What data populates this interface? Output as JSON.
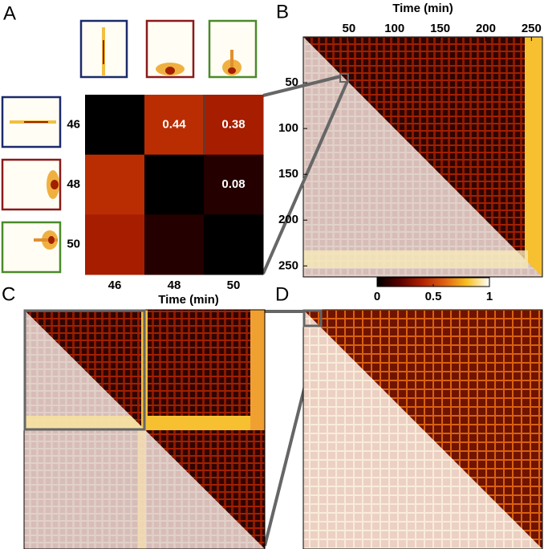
{
  "chart_data": [
    {
      "type": "heatmap",
      "panel": "A",
      "categories": [
        "46",
        "48",
        "50"
      ],
      "values": [
        [
          0,
          0.44,
          0.38
        ],
        [
          0.44,
          0,
          0.08
        ],
        [
          0.38,
          0.08,
          0
        ]
      ],
      "annotate": "upper"
    },
    {
      "type": "texture",
      "panel": "B",
      "xlabel": "Time (min)",
      "xlim": [
        0,
        262
      ],
      "ylim": [
        0,
        262
      ],
      "xticks": [
        50,
        100,
        150,
        200,
        250
      ],
      "yticks": [
        50,
        100,
        150,
        200,
        250
      ]
    },
    {
      "type": "colorbar",
      "lim": [
        0,
        1
      ],
      "ticks": [
        0,
        0.5,
        1
      ],
      "colors": [
        "#000000",
        "#5a0000",
        "#b02000",
        "#e06010",
        "#f8c020",
        "#ffffff"
      ]
    },
    {
      "type": "texture",
      "panel": "C",
      "xlabel": "Time (min)"
    },
    {
      "type": "texture",
      "panel": "D"
    }
  ]
}
